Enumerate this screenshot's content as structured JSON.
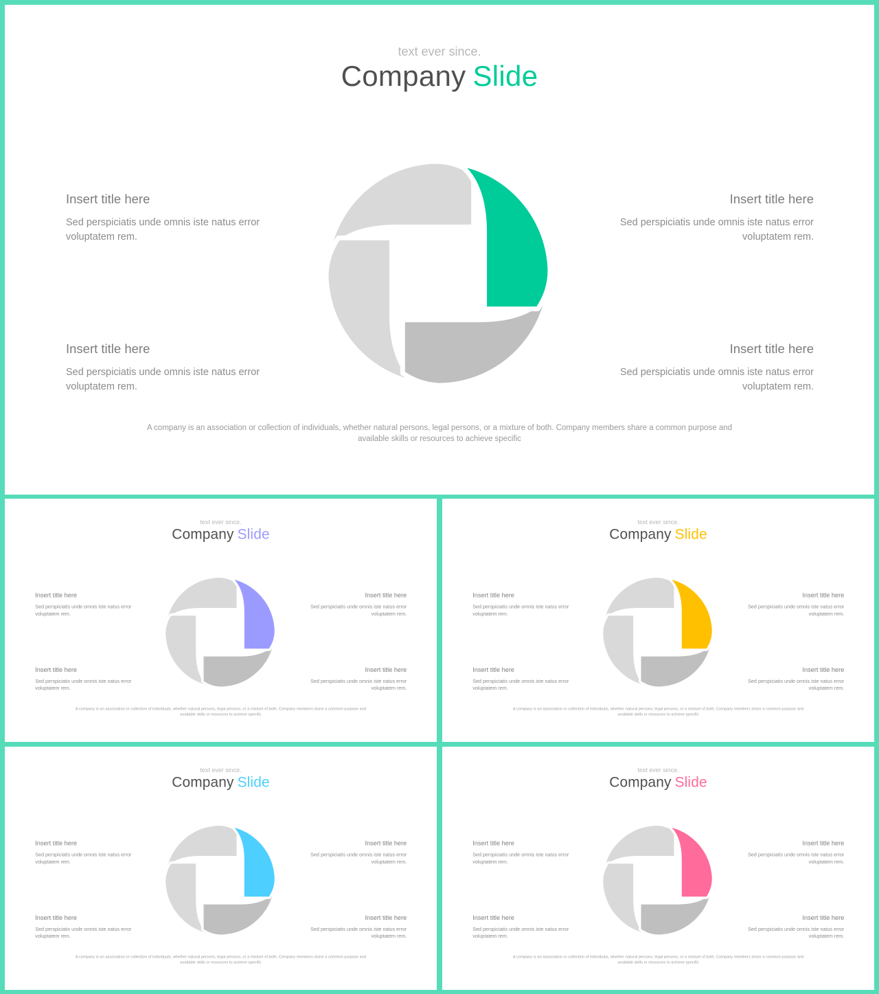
{
  "slides": [
    {
      "subtitle": "text ever since.",
      "title_main": "Company",
      "title_accent": "Slide",
      "accent_color": "#00cc99",
      "items": [
        {
          "title": "Insert title here",
          "desc": "Sed perspiciatis unde omnis iste natus error voluptatem rem."
        },
        {
          "title": "Insert title here",
          "desc": "Sed perspiciatis unde omnis iste natus error voluptatem rem."
        },
        {
          "title": "Insert title here",
          "desc": "Sed perspiciatis unde omnis iste natus error voluptatem rem."
        },
        {
          "title": "Insert title here",
          "desc": "Sed perspiciatis unde omnis iste natus error voluptatem rem."
        }
      ],
      "footer": "A company is an association or collection of individuals, whether natural persons, legal persons, or a mixture of both. Company members share a common purpose and available skills or resources to achieve specific"
    },
    {
      "subtitle": "text ever since.",
      "title_main": "Company",
      "title_accent": "Slide",
      "accent_color": "#9b9bff",
      "items": [
        {
          "title": "Insert title here",
          "desc": "Sed perspiciatis unde omnis iste natus error voluptatem rem."
        },
        {
          "title": "Insert title here",
          "desc": "Sed perspiciatis unde omnis iste natus error voluptatem rem."
        },
        {
          "title": "Insert title here",
          "desc": "Sed perspiciatis unde omnis iste natus error voluptatem rem."
        },
        {
          "title": "Insert title here",
          "desc": "Sed perspiciatis unde omnis iste natus error voluptatem rem."
        }
      ],
      "footer": "A company is an association or collection of individuals, whether natural persons, legal persons, or a mixture of both. Company members share a common purpose and available skills or resources to achieve specific"
    },
    {
      "subtitle": "text ever since.",
      "title_main": "Company",
      "title_accent": "Slide",
      "accent_color": "#ffc000",
      "items": [
        {
          "title": "Insert title here",
          "desc": "Sed perspiciatis unde omnis iste natus error voluptatem rem."
        },
        {
          "title": "Insert title here",
          "desc": "Sed perspiciatis unde omnis iste natus error voluptatem rem."
        },
        {
          "title": "Insert title here",
          "desc": "Sed perspiciatis unde omnis iste natus error voluptatem rem."
        },
        {
          "title": "Insert title here",
          "desc": "Sed perspiciatis unde omnis iste natus error voluptatem rem."
        }
      ],
      "footer": "A company is an association or collection of individuals, whether natural persons, legal persons, or a mixture of both. Company members share a common purpose and available skills or resources to achieve specific"
    },
    {
      "subtitle": "text ever since.",
      "title_main": "Company",
      "title_accent": "Slide",
      "accent_color": "#4dcfff",
      "items": [
        {
          "title": "Insert title here",
          "desc": "Sed perspiciatis unde omnis iste natus error voluptatem rem."
        },
        {
          "title": "Insert title here",
          "desc": "Sed perspiciatis unde omnis iste natus error voluptatem rem."
        },
        {
          "title": "Insert title here",
          "desc": "Sed perspiciatis unde omnis iste natus error voluptatem rem."
        },
        {
          "title": "Insert title here",
          "desc": "Sed perspiciatis unde omnis iste natus error voluptatem rem."
        }
      ],
      "footer": "A company is an association or collection of individuals, whether natural persons, legal persons, or a mixture of both. Company members share a common purpose and available skills or resources to achieve specific"
    },
    {
      "subtitle": "text ever since.",
      "title_main": "Company",
      "title_accent": "Slide",
      "accent_color": "#ff6b9a",
      "items": [
        {
          "title": "Insert title here",
          "desc": "Sed perspiciatis unde omnis iste natus error voluptatem rem."
        },
        {
          "title": "Insert title here",
          "desc": "Sed perspiciatis unde omnis iste natus error voluptatem rem."
        },
        {
          "title": "Insert title here",
          "desc": "Sed perspiciatis unde omnis iste natus error voluptatem rem."
        },
        {
          "title": "Insert title here",
          "desc": "Sed perspiciatis unde omnis iste natus error voluptatem rem."
        }
      ],
      "footer": "A company is an association or collection of individuals, whether natural persons, legal persons, or a mixture of both. Company members share a common purpose and available skills or resources to achieve specific"
    }
  ],
  "colors": {
    "frame": "#57dcb9",
    "segment_light": "#d9d9d9",
    "segment_dark": "#bfbfbf"
  }
}
